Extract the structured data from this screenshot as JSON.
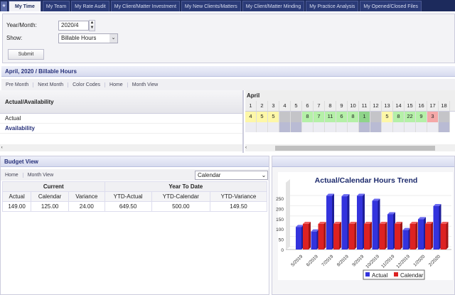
{
  "tabs": [
    "My Time",
    "My Team",
    "My Rate Audit",
    "My Client/Matter Investment",
    "My New Clients/Matters",
    "My Client/Matter Minding",
    "My Practice Analysis",
    "My Opened/Closed Files"
  ],
  "form": {
    "year_month_label": "Year/Month:",
    "year_month_value": "2020/4",
    "show_label": "Show:",
    "show_value": "Billable Hours",
    "submit": "Submit"
  },
  "hours_panel": {
    "title": "April, 2020 / Billable Hours",
    "toolbar": [
      "Pre Month",
      "Next Month",
      "Color Codes",
      "Home",
      "Month View"
    ],
    "left_header": "Actual/Availability",
    "row_actual": "Actual",
    "row_availability": "Availability",
    "month": "April",
    "days": [
      {
        "d": "1",
        "v": "4",
        "c": "#fdf7a8",
        "a": "#ececf2"
      },
      {
        "d": "2",
        "v": "5",
        "c": "#fdf7a8",
        "a": "#ececf2"
      },
      {
        "d": "3",
        "v": "5",
        "c": "#fdf7a8",
        "a": "#ececf2"
      },
      {
        "d": "4",
        "v": "",
        "c": "#c4c4c8",
        "a": "#b9bbd4"
      },
      {
        "d": "5",
        "v": "",
        "c": "#c4c4c8",
        "a": "#b9bbd4"
      },
      {
        "d": "6",
        "v": "8",
        "c": "#b5f0a8",
        "a": "#ececf2"
      },
      {
        "d": "7",
        "v": "7",
        "c": "#b5f0a8",
        "a": "#ececf2"
      },
      {
        "d": "8",
        "v": "11",
        "c": "#b5f0a8",
        "a": "#ececf2"
      },
      {
        "d": "9",
        "v": "6",
        "c": "#b5f0a8",
        "a": "#ececf2"
      },
      {
        "d": "10",
        "v": "8",
        "c": "#b5f0a8",
        "a": "#ececf2"
      },
      {
        "d": "11",
        "v": "1",
        "c": "#8fd48a",
        "a": "#b9bbd4"
      },
      {
        "d": "12",
        "v": "",
        "c": "#c4c4c8",
        "a": "#b9bbd4"
      },
      {
        "d": "13",
        "v": "5",
        "c": "#fdf7a8",
        "a": "#ececf2"
      },
      {
        "d": "14",
        "v": "8",
        "c": "#b5f0a8",
        "a": "#ececf2"
      },
      {
        "d": "15",
        "v": "22",
        "c": "#b5f0a8",
        "a": "#ececf2"
      },
      {
        "d": "16",
        "v": "9",
        "c": "#b5f0a8",
        "a": "#ececf2"
      },
      {
        "d": "17",
        "v": "3",
        "c": "#f5a8a8",
        "a": "#ececf2"
      },
      {
        "d": "18",
        "v": "",
        "c": "#c4c4c8",
        "a": "#b9bbd4"
      }
    ]
  },
  "budget": {
    "title": "Budget View",
    "toolbar": [
      "Home",
      "Month View"
    ],
    "select": "Calendar",
    "group_current": "Current",
    "group_ytd": "Year To Date",
    "columns": [
      "Actual",
      "Calendar",
      "Variance",
      "YTD-Actual",
      "YTD-Calendar",
      "YTD-Variance"
    ],
    "row": [
      "149.00",
      "125.00",
      "24.00",
      "649.50",
      "500.00",
      "149.50"
    ]
  },
  "chart_data": {
    "type": "bar",
    "title": "Actual/Calendar Hours Trend",
    "categories": [
      "5/2019",
      "6/2019",
      "7/2019",
      "8/2019",
      "9/2019",
      "10/2019",
      "11/2019",
      "12/2019",
      "1/2020",
      "2/2020"
    ],
    "series": [
      {
        "name": "Actual",
        "color": "#3333dd",
        "values": [
          110,
          88,
          262,
          260,
          262,
          238,
          172,
          95,
          148,
          212
        ]
      },
      {
        "name": "Calendar",
        "color": "#dd2222",
        "values": [
          125,
          125,
          125,
          125,
          125,
          125,
          125,
          125,
          125,
          125
        ]
      }
    ],
    "yticks": [
      0,
      50,
      100,
      150,
      200,
      250
    ],
    "ylim": [
      0,
      275
    ],
    "legend": "bottom"
  }
}
